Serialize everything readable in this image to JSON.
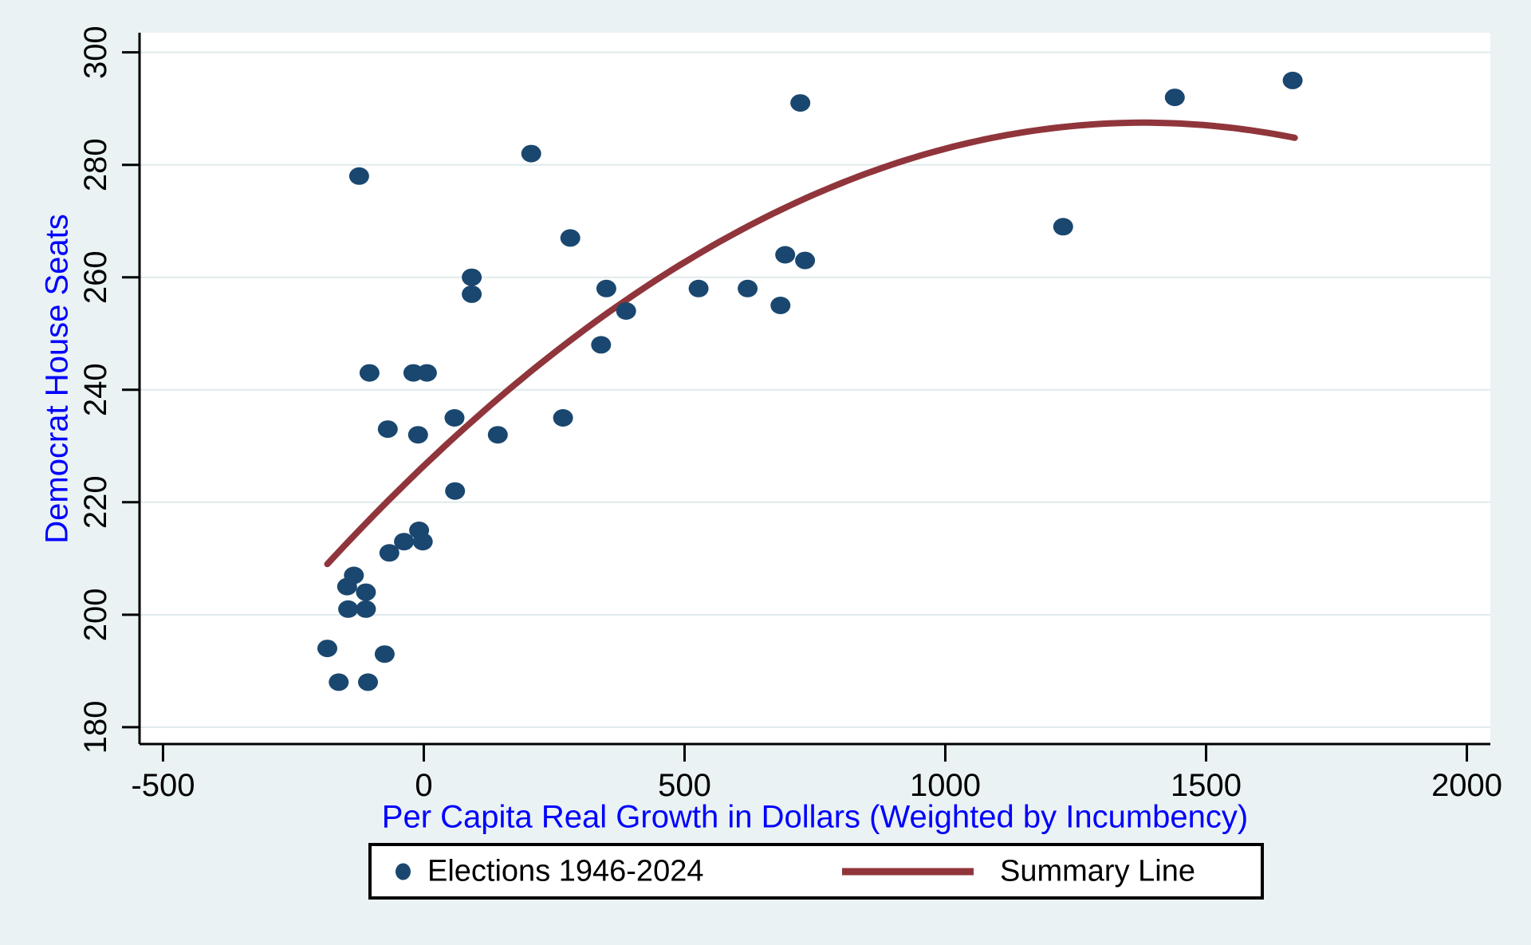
{
  "chart_data": {
    "type": "scatter",
    "title": "",
    "xlabel": "Per Capita Real Growth in Dollars (Weighted by Incumbency)",
    "ylabel": "Democrat House Seats",
    "xlim": [
      -545,
      2045
    ],
    "ylim": [
      177,
      303.5
    ],
    "x_ticks": [
      -500,
      0,
      500,
      1000,
      1500,
      2000
    ],
    "y_ticks": [
      180,
      200,
      220,
      240,
      260,
      280,
      300
    ],
    "grid": "horizontal-only",
    "legend_position": "bottom-center",
    "series": [
      {
        "name": "Elections 1946-2024",
        "type": "scatter",
        "points": [
          [
            -185,
            194
          ],
          [
            -163,
            188
          ],
          [
            -147,
            205
          ],
          [
            -145,
            201
          ],
          [
            -134,
            207
          ],
          [
            -124,
            278
          ],
          [
            -111,
            204
          ],
          [
            -111,
            201
          ],
          [
            -107,
            188
          ],
          [
            -104,
            243
          ],
          [
            -75,
            193
          ],
          [
            -69,
            233
          ],
          [
            -66,
            211
          ],
          [
            -38,
            213
          ],
          [
            -20,
            243
          ],
          [
            -11,
            232
          ],
          [
            -9,
            215
          ],
          [
            -2,
            213
          ],
          [
            6,
            243
          ],
          [
            59,
            235
          ],
          [
            60,
            222
          ],
          [
            92,
            260
          ],
          [
            92,
            257
          ],
          [
            142,
            232
          ],
          [
            206,
            282
          ],
          [
            267,
            235
          ],
          [
            281,
            267
          ],
          [
            340,
            248
          ],
          [
            350,
            258
          ],
          [
            388,
            254
          ],
          [
            527,
            258
          ],
          [
            621,
            258
          ],
          [
            684,
            255
          ],
          [
            693,
            264
          ],
          [
            722,
            291
          ],
          [
            731,
            263
          ],
          [
            1226,
            269
          ],
          [
            1440,
            292
          ],
          [
            1666,
            295
          ]
        ]
      },
      {
        "name": "Summary Line",
        "type": "quadratic-fit",
        "x_start": -185,
        "x_end": 1670,
        "vertex_x": 1380,
        "vertex_y": 287.5,
        "coeff_a": -3.205e-05
      }
    ],
    "legend": {
      "points_label": "Elections 1946-2024",
      "line_label": "Summary Line"
    }
  },
  "colors": {
    "background": "#eaf2f3",
    "plot_background": "#ffffff",
    "gridline": "#dfeaec",
    "axis": "#000000",
    "tick_label": "#000000",
    "axis_title": "#0000ff",
    "scatter_dot": "#1a476f",
    "summary_line": "#90353b",
    "legend_border": "#000000",
    "legend_background": "#ffffff"
  }
}
